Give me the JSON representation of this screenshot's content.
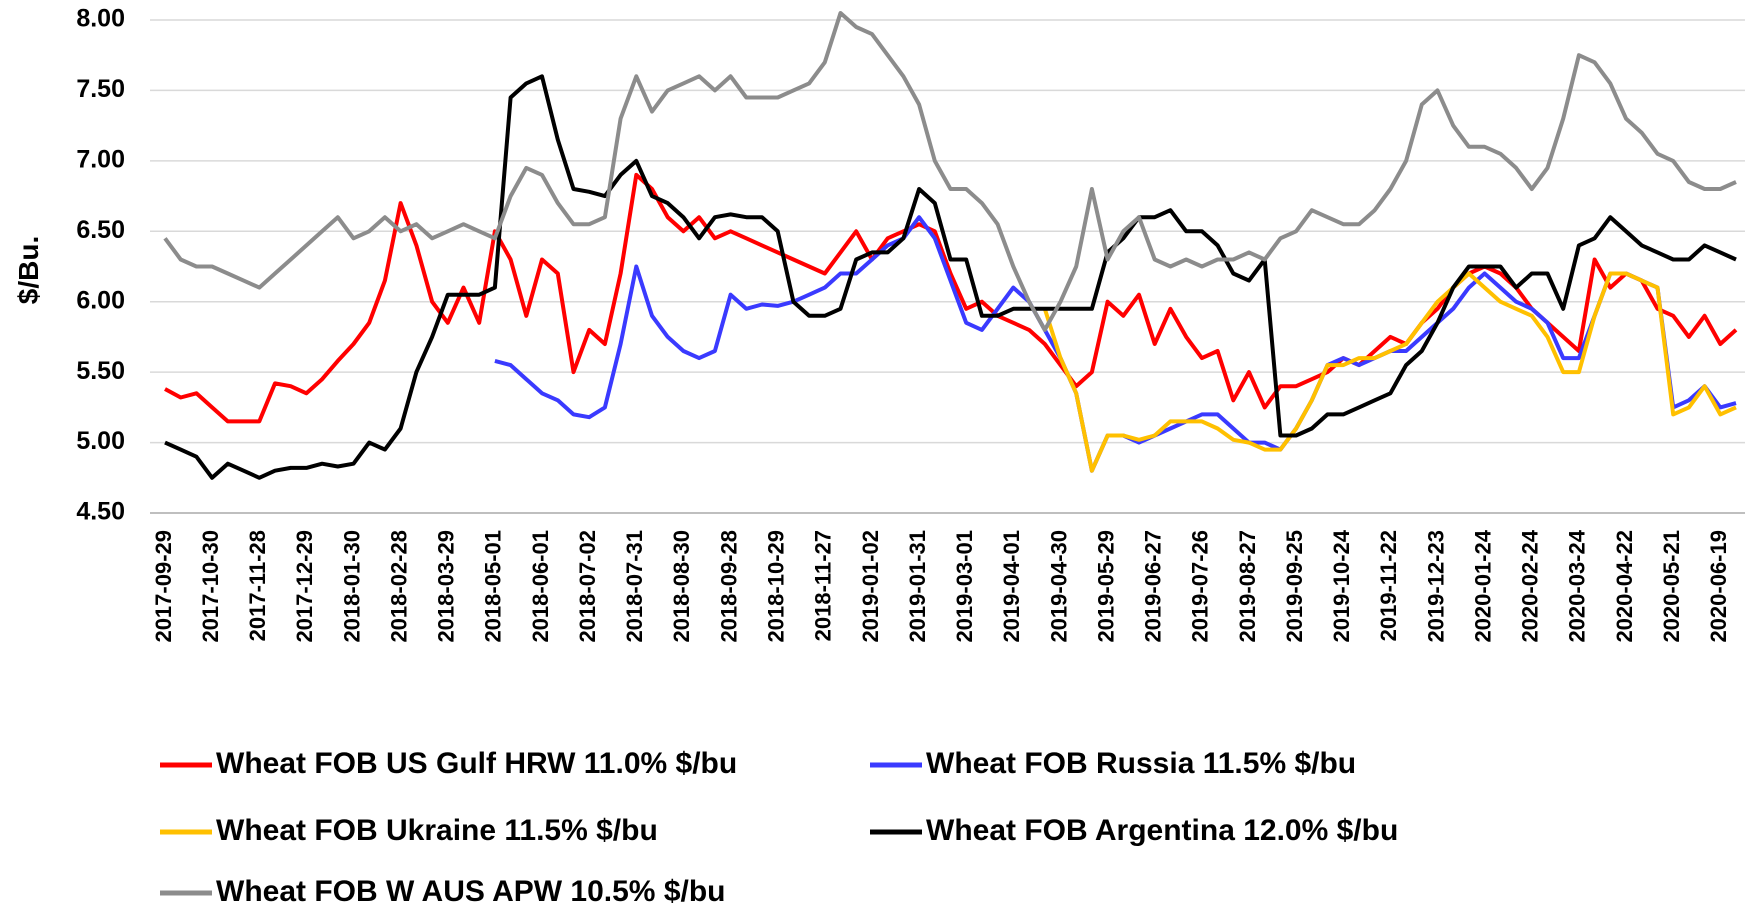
{
  "chart_data": {
    "type": "line",
    "y_label": "$/Bu.",
    "ylim": [
      4.5,
      8.0
    ],
    "yticks": [
      {
        "value": 4.5,
        "label": "4.50"
      },
      {
        "value": 5,
        "label": "5.00"
      },
      {
        "value": 5.5,
        "label": "5.50"
      },
      {
        "value": 6,
        "label": "6.00"
      },
      {
        "value": 6.5,
        "label": "6.50"
      },
      {
        "value": 7,
        "label": "7.00"
      },
      {
        "value": 7.5,
        "label": "7.50"
      },
      {
        "value": 8,
        "label": "8.00"
      }
    ],
    "grid": true,
    "legend": "bottom",
    "categories": [
      "2017-09-29",
      null,
      null,
      "2017-10-30",
      null,
      null,
      "2017-11-28",
      null,
      null,
      "2017-12-29",
      null,
      null,
      "2018-01-30",
      null,
      null,
      "2018-02-28",
      null,
      null,
      "2018-03-29",
      null,
      null,
      "2018-05-01",
      null,
      null,
      "2018-06-01",
      null,
      null,
      "2018-07-02",
      null,
      null,
      "2018-07-31",
      null,
      null,
      "2018-08-30",
      null,
      null,
      "2018-09-28",
      null,
      null,
      "2018-10-29",
      null,
      null,
      "2018-11-27",
      null,
      null,
      "2019-01-02",
      null,
      null,
      "2019-01-31",
      null,
      null,
      "2019-03-01",
      null,
      null,
      "2019-04-01",
      null,
      null,
      "2019-04-30",
      null,
      null,
      "2019-05-29",
      null,
      null,
      "2019-06-27",
      null,
      null,
      "2019-07-26",
      null,
      null,
      "2019-08-27",
      null,
      null,
      "2019-09-25",
      null,
      null,
      "2019-10-24",
      null,
      null,
      "2019-11-22",
      null,
      null,
      "2019-12-23",
      null,
      null,
      "2020-01-24",
      null,
      null,
      "2020-02-24",
      null,
      null,
      "2020-03-24",
      null,
      null,
      "2020-04-22",
      null,
      null,
      "2020-05-21",
      null,
      null,
      "2020-06-19",
      null
    ],
    "series": [
      {
        "name": "Wheat FOB US Gulf HRW 11.0% $/bu",
        "color": "#ff0000",
        "values": [
          5.38,
          5.32,
          5.35,
          5.25,
          5.15,
          5.15,
          5.15,
          5.42,
          5.4,
          5.35,
          5.45,
          5.58,
          5.7,
          5.85,
          6.15,
          6.7,
          6.4,
          6.0,
          5.85,
          6.1,
          5.85,
          6.5,
          6.3,
          5.9,
          6.3,
          6.2,
          5.5,
          5.8,
          5.7,
          6.2,
          6.9,
          6.8,
          6.6,
          6.5,
          6.6,
          6.45,
          6.5,
          6.45,
          6.4,
          6.35,
          6.3,
          6.25,
          6.2,
          6.35,
          6.5,
          6.3,
          6.45,
          6.5,
          6.55,
          6.5,
          6.2,
          5.95,
          6.0,
          5.9,
          5.85,
          5.8,
          5.7,
          5.55,
          5.4,
          5.5,
          6.0,
          5.9,
          6.05,
          5.7,
          5.95,
          5.75,
          5.6,
          5.65,
          5.3,
          5.5,
          5.25,
          5.4,
          5.4,
          5.45,
          5.5,
          5.6,
          5.55,
          5.65,
          5.75,
          5.7,
          5.85,
          5.95,
          6.1,
          6.2,
          6.25,
          6.2,
          6.1,
          5.95,
          5.85,
          5.75,
          5.65,
          6.3,
          6.1,
          6.2,
          6.15,
          5.95,
          5.9,
          5.75,
          5.9,
          5.7,
          5.8
        ]
      },
      {
        "name": "Wheat FOB Russia 11.5% $/bu",
        "color": "#3a3aff",
        "values": [
          null,
          null,
          null,
          null,
          null,
          null,
          null,
          null,
          null,
          null,
          null,
          null,
          null,
          null,
          null,
          null,
          null,
          null,
          null,
          null,
          null,
          5.58,
          5.55,
          5.45,
          5.35,
          5.3,
          5.2,
          5.18,
          5.25,
          5.7,
          6.25,
          5.9,
          5.75,
          5.65,
          5.6,
          5.65,
          6.05,
          5.95,
          5.98,
          5.97,
          6.0,
          6.05,
          6.1,
          6.2,
          6.2,
          6.3,
          6.4,
          6.45,
          6.6,
          6.45,
          6.15,
          5.85,
          5.8,
          5.95,
          6.1,
          6.0,
          5.8,
          5.6,
          5.35,
          4.8,
          5.05,
          5.05,
          5.0,
          5.05,
          5.1,
          5.15,
          5.2,
          5.2,
          5.1,
          5.0,
          5.0,
          4.95,
          5.1,
          5.3,
          5.55,
          5.6,
          5.55,
          5.6,
          5.65,
          5.65,
          5.75,
          5.85,
          5.95,
          6.1,
          6.2,
          6.1,
          6.0,
          5.95,
          5.85,
          5.6,
          5.6,
          5.9,
          6.2,
          6.2,
          6.15,
          6.1,
          5.25,
          5.3,
          5.4,
          5.25,
          5.28
        ]
      },
      {
        "name": "Wheat FOB Ukraine 11.5% $/bu",
        "color": "#ffc000",
        "values": [
          null,
          null,
          null,
          null,
          null,
          null,
          null,
          null,
          null,
          null,
          null,
          null,
          null,
          null,
          null,
          null,
          null,
          null,
          null,
          null,
          null,
          null,
          null,
          null,
          null,
          null,
          null,
          null,
          null,
          null,
          null,
          null,
          null,
          null,
          null,
          null,
          null,
          null,
          null,
          null,
          null,
          null,
          null,
          null,
          null,
          null,
          null,
          null,
          null,
          null,
          null,
          null,
          null,
          null,
          null,
          null,
          5.95,
          5.6,
          5.35,
          4.8,
          5.05,
          5.05,
          5.02,
          5.05,
          5.15,
          5.15,
          5.15,
          5.1,
          5.02,
          5.0,
          4.95,
          4.95,
          5.1,
          5.3,
          5.55,
          5.55,
          5.6,
          5.6,
          5.65,
          5.7,
          5.85,
          6.0,
          6.1,
          6.2,
          6.1,
          6.0,
          5.95,
          5.9,
          5.75,
          5.5,
          5.5,
          5.9,
          6.2,
          6.2,
          6.15,
          6.1,
          5.2,
          5.25,
          5.4,
          5.2,
          5.25
        ]
      },
      {
        "name": "Wheat FOB Argentina 12.0% $/bu",
        "color": "#000000",
        "values": [
          5.0,
          4.95,
          4.9,
          4.75,
          4.85,
          4.8,
          4.75,
          4.8,
          4.82,
          4.82,
          4.85,
          4.83,
          4.85,
          5.0,
          4.95,
          5.1,
          5.5,
          5.75,
          6.05,
          6.05,
          6.05,
          6.1,
          7.45,
          7.55,
          7.6,
          7.15,
          6.8,
          6.78,
          6.75,
          6.9,
          7.0,
          6.75,
          6.7,
          6.6,
          6.45,
          6.6,
          6.62,
          6.6,
          6.6,
          6.5,
          6.0,
          5.9,
          5.9,
          5.95,
          6.3,
          6.35,
          6.35,
          6.45,
          6.8,
          6.7,
          6.3,
          6.3,
          5.9,
          5.9,
          5.95,
          5.95,
          5.95,
          5.95,
          5.95,
          5.95,
          6.35,
          6.45,
          6.6,
          6.6,
          6.65,
          6.5,
          6.5,
          6.4,
          6.2,
          6.15,
          6.3,
          5.05,
          5.05,
          5.1,
          5.2,
          5.2,
          5.25,
          5.3,
          5.35,
          5.55,
          5.65,
          5.85,
          6.1,
          6.25,
          6.25,
          6.25,
          6.1,
          6.2,
          6.2,
          5.95,
          6.4,
          6.45,
          6.6,
          6.5,
          6.4,
          6.35,
          6.3,
          6.3,
          6.4,
          6.35,
          6.3
        ]
      },
      {
        "name": "Wheat FOB W AUS APW 10.5% $/bu",
        "color": "#8c8c8c",
        "values": [
          6.45,
          6.3,
          6.25,
          6.25,
          6.2,
          6.15,
          6.1,
          6.2,
          6.3,
          6.4,
          6.5,
          6.6,
          6.45,
          6.5,
          6.6,
          6.5,
          6.55,
          6.45,
          6.5,
          6.55,
          6.5,
          6.45,
          6.75,
          6.95,
          6.9,
          6.7,
          6.55,
          6.55,
          6.6,
          7.3,
          7.6,
          7.35,
          7.5,
          7.55,
          7.6,
          7.5,
          7.6,
          7.45,
          7.45,
          7.45,
          7.5,
          7.55,
          7.7,
          8.05,
          7.95,
          7.9,
          7.75,
          7.6,
          7.4,
          7.0,
          6.8,
          6.8,
          6.7,
          6.55,
          6.25,
          6.0,
          5.8,
          6.0,
          6.25,
          6.8,
          6.3,
          6.5,
          6.6,
          6.3,
          6.25,
          6.3,
          6.25,
          6.3,
          6.3,
          6.35,
          6.3,
          6.45,
          6.5,
          6.65,
          6.6,
          6.55,
          6.55,
          6.65,
          6.8,
          7.0,
          7.4,
          7.5,
          7.25,
          7.1,
          7.1,
          7.05,
          6.95,
          6.8,
          6.95,
          7.3,
          7.75,
          7.7,
          7.55,
          7.3,
          7.2,
          7.05,
          7.0,
          6.85,
          6.8,
          6.8,
          6.85
        ]
      }
    ]
  }
}
